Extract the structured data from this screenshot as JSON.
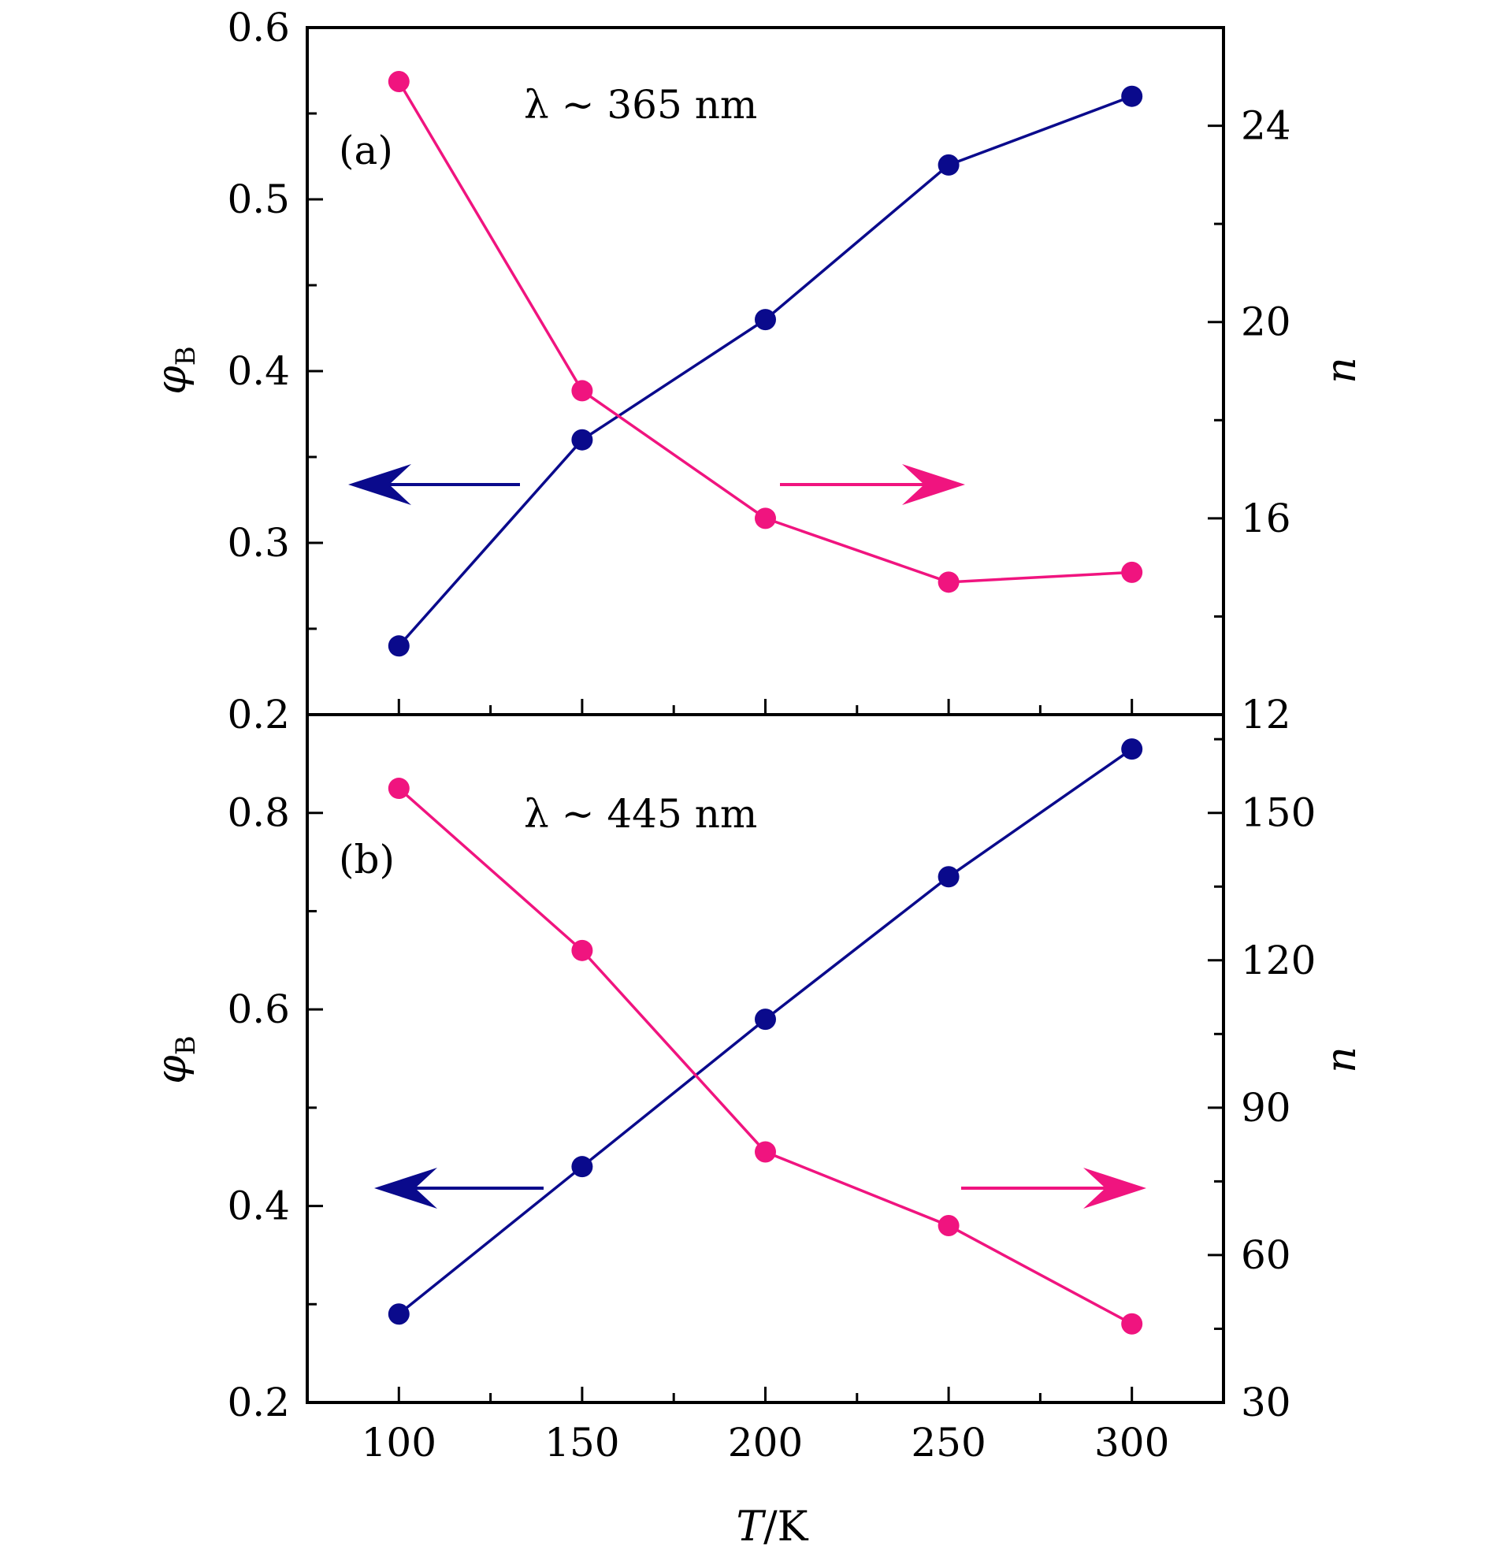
{
  "chart_data": [
    {
      "type": "line",
      "panel_label": "(a)",
      "annotation": "λ ~ 365 nm",
      "x": [
        100,
        150,
        200,
        250,
        300
      ],
      "xlim": [
        75,
        325
      ],
      "left_axis": {
        "label_symbol": "φ",
        "label_sub": "B",
        "ylim": [
          0.2,
          0.6
        ],
        "ticks": [
          "0.2",
          "0.3",
          "0.4",
          "0.5",
          "0.6"
        ],
        "tick_values": [
          0.2,
          0.3,
          0.4,
          0.5,
          0.6
        ]
      },
      "right_axis": {
        "label": "n",
        "ylim": [
          12,
          26
        ],
        "ticks": [
          "12",
          "16",
          "20",
          "24"
        ],
        "tick_values": [
          12,
          16,
          20,
          24
        ]
      },
      "series": [
        {
          "axis": "left",
          "color": "#0a0a8c",
          "values": [
            0.24,
            0.36,
            0.43,
            0.52,
            0.56
          ],
          "arrow": "left"
        },
        {
          "axis": "right",
          "color": "#f0147f",
          "values": [
            24.9,
            18.6,
            16.0,
            14.7,
            14.9
          ],
          "arrow": "right"
        }
      ]
    },
    {
      "type": "line",
      "panel_label": "(b)",
      "annotation": "λ ~ 445 nm",
      "x": [
        100,
        150,
        200,
        250,
        300
      ],
      "xlim": [
        75,
        325
      ],
      "xlabel_italic": "T",
      "xlabel_rest": "/K",
      "x_ticks": [
        "100",
        "150",
        "200",
        "250",
        "300"
      ],
      "x_tick_values": [
        100,
        150,
        200,
        250,
        300
      ],
      "left_axis": {
        "label_symbol": "φ",
        "label_sub": "B",
        "ylim": [
          0.2,
          0.9
        ],
        "ticks": [
          "0.2",
          "0.4",
          "0.6",
          "0.8"
        ],
        "tick_values": [
          0.2,
          0.4,
          0.6,
          0.8
        ]
      },
      "right_axis": {
        "label": "n",
        "ylim": [
          30,
          170
        ],
        "ticks": [
          "30",
          "60",
          "90",
          "120",
          "150"
        ],
        "tick_values": [
          30,
          60,
          90,
          120,
          150
        ]
      },
      "series": [
        {
          "axis": "left",
          "color": "#0a0a8c",
          "values": [
            0.29,
            0.44,
            0.59,
            0.735,
            0.865
          ],
          "arrow": "left"
        },
        {
          "axis": "right",
          "color": "#f0147f",
          "values": [
            155,
            122,
            81,
            66,
            46
          ],
          "arrow": "right"
        }
      ]
    }
  ]
}
